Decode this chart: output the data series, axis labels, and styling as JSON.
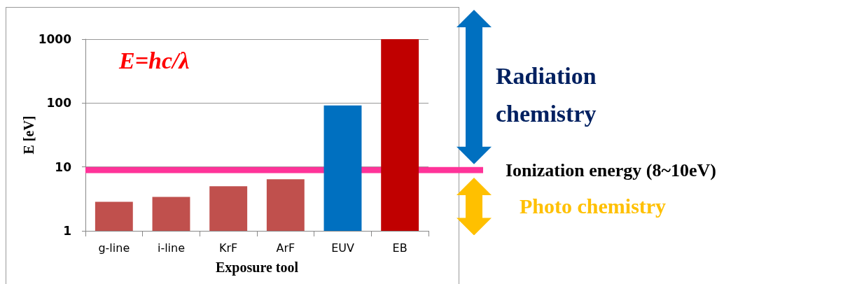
{
  "chart_data": {
    "type": "bar",
    "xlabel": "Exposure tool",
    "ylabel": "E [eV]",
    "categories": [
      "g-line",
      "i-line",
      "KrF",
      "ArF",
      "EUV",
      "EB"
    ],
    "values": [
      2.84,
      3.4,
      5.0,
      6.4,
      92,
      1000
    ],
    "colors": [
      "#c0504d",
      "#c0504d",
      "#c0504d",
      "#c0504d",
      "#0070c0",
      "#c00000"
    ],
    "log": true,
    "ylim": [
      1,
      1000
    ],
    "yticks": [
      1,
      10,
      100,
      1000
    ],
    "grid": "y",
    "bands": [
      {
        "axis": "y",
        "from": 8,
        "to": 10,
        "label": "Ionization energy (8~10eV)",
        "color": "#ff3399"
      }
    ],
    "annotations": [
      "E=hc/λ",
      "Radiation chemistry",
      "Photo chemistry"
    ]
  }
}
